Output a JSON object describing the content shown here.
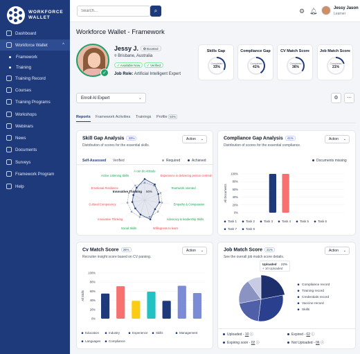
{
  "brand": {
    "name_line1": "WORKFORCE",
    "name_line2": "WALLET"
  },
  "sidebar": {
    "items": [
      {
        "label": "Dashboard"
      },
      {
        "label": "Workforce Wallet",
        "chevron": "^"
      },
      {
        "label": "Framework"
      },
      {
        "label": "Training"
      },
      {
        "label": "Training Record"
      },
      {
        "label": "Courses"
      },
      {
        "label": "Training Programs"
      },
      {
        "label": "Workshops"
      },
      {
        "label": "Webinars"
      },
      {
        "label": "News"
      },
      {
        "label": "Documents"
      },
      {
        "label": "Surveys"
      },
      {
        "label": "Framework Program"
      },
      {
        "label": "Help"
      }
    ]
  },
  "topbar": {
    "search_placeholder": "Search...",
    "user_name": "Jessy Jason",
    "user_role": "Learner"
  },
  "page": {
    "title": "Workforce Wallet - Framework"
  },
  "profile": {
    "name": "Jessy J.",
    "boosted": "Boosted",
    "location": "Brisbane, Australia",
    "pill_available": "Available Now",
    "pill_verified": "Verified",
    "job_role_label": "Job Role:",
    "job_role": "Artificial Intelligent Expert"
  },
  "scores": [
    {
      "title": "Skills Gap",
      "caption": "Completed",
      "value": "33%",
      "pct": 33
    },
    {
      "title": "Compliance Gap",
      "caption": "Completed",
      "value": "41%",
      "pct": 41
    },
    {
      "title": "CV Match Score",
      "caption": "Completed",
      "value": "36%",
      "pct": 36
    },
    {
      "title": "Job Match Score",
      "caption": "Completed",
      "value": "21%",
      "pct": 21
    }
  ],
  "enroll": {
    "label": "Enroll AI Expert"
  },
  "tabs": [
    {
      "label": "Reports"
    },
    {
      "label": "Framework Activities"
    },
    {
      "label": "Trainings"
    },
    {
      "label": "Profile"
    },
    {
      "label": "50%"
    }
  ],
  "skill_gap": {
    "title": "Skill Gap Analysis",
    "badge": "33%",
    "subtitle": "Distribution of scores for the essential skills.",
    "action": "Action",
    "subtab_assessed": "Self-Assessed",
    "subtab_verified": "Verified",
    "legend_required": "Required",
    "legend_achieved": "Achieved",
    "center_label": "Innovative Thinking",
    "center_value": "50%"
  },
  "compliance_gap": {
    "title": "Compliance Gap Analysis",
    "badge": "41%",
    "subtitle": "Distribution of scores for the essential compliance.",
    "action": "Action",
    "legend_missing": "Documents missing"
  },
  "cv_match": {
    "title": "Cv Match Score",
    "badge": "36%",
    "subtitle": "Recruiter insight score based on CV parsing.",
    "action": "Action"
  },
  "job_match": {
    "title": "Job Match Score",
    "badge": "21%",
    "subtitle": "See the overall job match score details.",
    "action": "Action",
    "tooltip_label": "Uploaded",
    "tooltip_pct": "22%",
    "tooltip_sub": "+ 10 Uploaded",
    "stats": [
      {
        "label": "Uploaded -",
        "value": "10"
      },
      {
        "label": "Expired -",
        "value": "02"
      },
      {
        "label": "Expiring soon -",
        "value": "02"
      },
      {
        "label": "Not Uploaded -",
        "value": "06"
      }
    ]
  },
  "chart_data": [
    {
      "type": "radar",
      "title": "Skill Gap Analysis",
      "categories": [
        "A can do Attitude",
        "Experience in delivering person centred service",
        "Teamwork oriented",
        "Empathy & Compassion",
        "Advocacy & leadership Skills",
        "Willingness to learn",
        "Social Skills",
        "Innovative Thinking",
        "Cultural Competency",
        "Emotional Resilience",
        "Active Listening Skills"
      ],
      "category_colors": [
        "#16a34a",
        "#ef4444",
        "#16a34a",
        "#16a34a",
        "#16a34a",
        "#ef4444",
        "#16a34a",
        "#ef4444",
        "#ef4444",
        "#ef4444",
        "#16a34a"
      ],
      "series": [
        {
          "name": "Required",
          "values": [
            0.7,
            0.7,
            0.7,
            0.7,
            0.7,
            0.7,
            0.7,
            0.7,
            0.7,
            0.7,
            0.7
          ]
        },
        {
          "name": "Achieved",
          "values": [
            0.85,
            0.75,
            0.6,
            0.6,
            0.55,
            0.8,
            0.6,
            0.5,
            0.5,
            0.5,
            0.6
          ]
        }
      ]
    },
    {
      "type": "bar",
      "title": "Compliance Gap Analysis",
      "ylabel": "All Documents",
      "ylim": [
        0,
        100
      ],
      "yticks": [
        "0%",
        "20%",
        "40%",
        "60%",
        "80%",
        "100%"
      ],
      "categories": [
        "Task 1",
        "Task 2",
        "Task 3",
        "Task 4",
        "Task 5",
        "Task 6",
        "Task 7",
        "Task 8"
      ],
      "values": [
        0,
        0,
        100,
        100,
        0,
        0,
        0,
        0
      ],
      "colors": [
        "#1e3a7b",
        "#f87171",
        "#1e3a7b",
        "#f87171",
        "#1e3a7b",
        "#f87171",
        "#1e3a7b",
        "#f87171"
      ]
    },
    {
      "type": "bar",
      "title": "Cv Match Score",
      "ylabel": "All Skills",
      "ylim": [
        0,
        100
      ],
      "yticks": [
        "0%",
        "20%",
        "40%",
        "60%",
        "80%",
        "100%"
      ],
      "categories": [
        "Education",
        "Industry",
        "Experience",
        "Skills",
        "Management",
        "Languages",
        "Compliance"
      ],
      "values": [
        55,
        71,
        39,
        59,
        39,
        72,
        56
      ],
      "colors": [
        "#1e3a7b",
        "#f87171",
        "#facc15",
        "#22c1c3",
        "#1e3a7b",
        "#7c8bd6",
        "#7c8bd6"
      ]
    },
    {
      "type": "pie",
      "title": "Job Match Score",
      "categories": [
        "Compliance record",
        "Training record",
        "Credentials record",
        "Vaccine record",
        "Skills"
      ],
      "values": [
        22,
        30,
        20,
        18,
        10
      ],
      "colors": [
        "#1e2f6e",
        "#2b3f8f",
        "#4f5fa8",
        "#8b93c2",
        "#c7cbe3"
      ]
    }
  ]
}
